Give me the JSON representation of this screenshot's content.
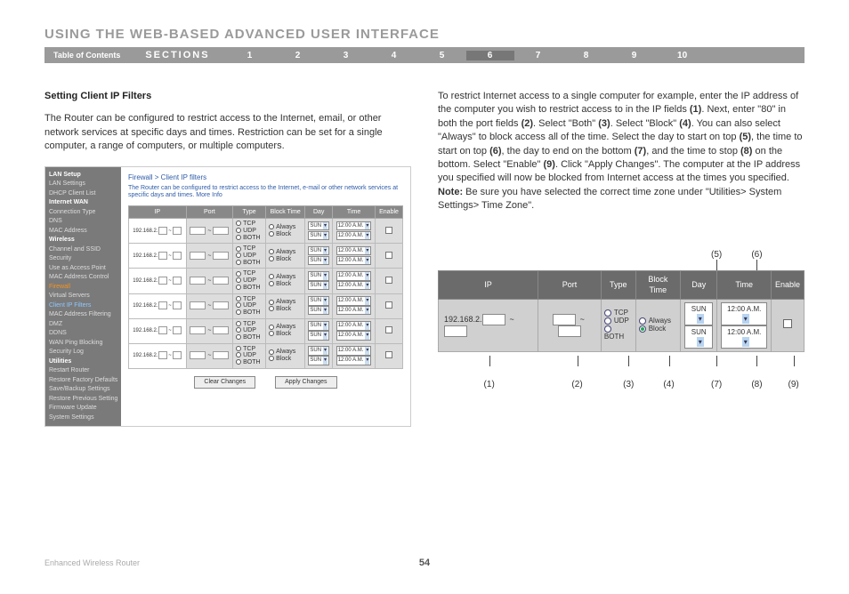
{
  "header": {
    "title": "USING THE WEB-BASED ADVANCED USER INTERFACE"
  },
  "nav": {
    "toc": "Table of Contents",
    "sections_label": "SECTIONS",
    "items": [
      "1",
      "2",
      "3",
      "4",
      "5",
      "6",
      "7",
      "8",
      "9",
      "10"
    ],
    "active": "6"
  },
  "left": {
    "heading": "Setting Client IP Filters",
    "para": "The Router can be configured to restrict access to the Internet, email, or other network services at specific days and times. Restriction can be set for a single computer, a range of computers, or multiple computers."
  },
  "right": {
    "para": "To restrict Internet access to a single computer for example, enter the IP address of the computer you wish to restrict access to in the IP fields (1). Next, enter \"80\" in both the port fields (2). Select \"Both\" (3). Select \"Block\" (4). You can also select \"Always\" to block access all of the time. Select the day to start on top (5), the time to start on top (6), the day to end on the bottom (7), and the time to stop (8) on the bottom. Select \"Enable\" (9). Click \"Apply Changes\". The computer at the IP address you specified will now be blocked from Internet access at the times you specified. Note: Be sure you have selected the correct time zone under \"Utilities> System Settings> Time Zone\"."
  },
  "screenshot": {
    "breadcrumb": "Firewall > Client IP filters",
    "desc": "The Router can be configured to restrict access to the Internet, e-mail or other network services at specific days and times. More Info",
    "side_items": [
      {
        "t": "LAN Setup",
        "c": "hl"
      },
      {
        "t": "LAN Settings"
      },
      {
        "t": "DHCP Client List"
      },
      {
        "t": "Internet WAN",
        "c": "hl"
      },
      {
        "t": "Connection Type"
      },
      {
        "t": "DNS"
      },
      {
        "t": "MAC Address"
      },
      {
        "t": "Wireless",
        "c": "hl"
      },
      {
        "t": "Channel and SSID"
      },
      {
        "t": "Security"
      },
      {
        "t": "Use as Access Point"
      },
      {
        "t": "MAC Address Control"
      },
      {
        "t": "Firewall",
        "c": "org"
      },
      {
        "t": "Virtual Servers"
      },
      {
        "t": "Client IP Filters",
        "c": "blu"
      },
      {
        "t": "MAC Address Filtering"
      },
      {
        "t": "DMZ"
      },
      {
        "t": "DDNS"
      },
      {
        "t": "WAN Ping Blocking"
      },
      {
        "t": "Security Log"
      },
      {
        "t": "Utilities",
        "c": "hl"
      },
      {
        "t": "Restart Router"
      },
      {
        "t": "Restore Factory Defaults"
      },
      {
        "t": "Save/Backup Settings"
      },
      {
        "t": "Restore Previous Settings"
      },
      {
        "t": "Firmware Update"
      },
      {
        "t": "System Settings"
      }
    ],
    "cols": [
      "IP",
      "Port",
      "Type",
      "Block Time",
      "Day",
      "Time",
      "Enable"
    ],
    "ip_prefix": "192.168.2.",
    "types": [
      "TCP",
      "UDP",
      "BOTH"
    ],
    "blocktime": [
      "Always",
      "Block"
    ],
    "day": "SUN",
    "time": "12:00 A.M.",
    "rows": 6,
    "btn_clear": "Clear Changes",
    "btn_apply": "Apply Changes"
  },
  "callout": {
    "cols": [
      "IP",
      "Port",
      "Type",
      "Block Time",
      "Day",
      "Time",
      "Enable"
    ],
    "ip": "192.168.2.",
    "types": {
      "tcp": "TCP",
      "udp": "UDP",
      "both": "BOTH"
    },
    "bt": {
      "always": "Always",
      "block": "Block"
    },
    "day": "SUN",
    "time": "12:00 A.M.",
    "labels_top": {
      "5": "(5)",
      "6": "(6)"
    },
    "labels_bot": {
      "1": "(1)",
      "2": "(2)",
      "3": "(3)",
      "4": "(4)",
      "7": "(7)",
      "8": "(8)",
      "9": "(9)"
    }
  },
  "footer": {
    "product": "Enhanced Wireless Router",
    "page": "54"
  }
}
